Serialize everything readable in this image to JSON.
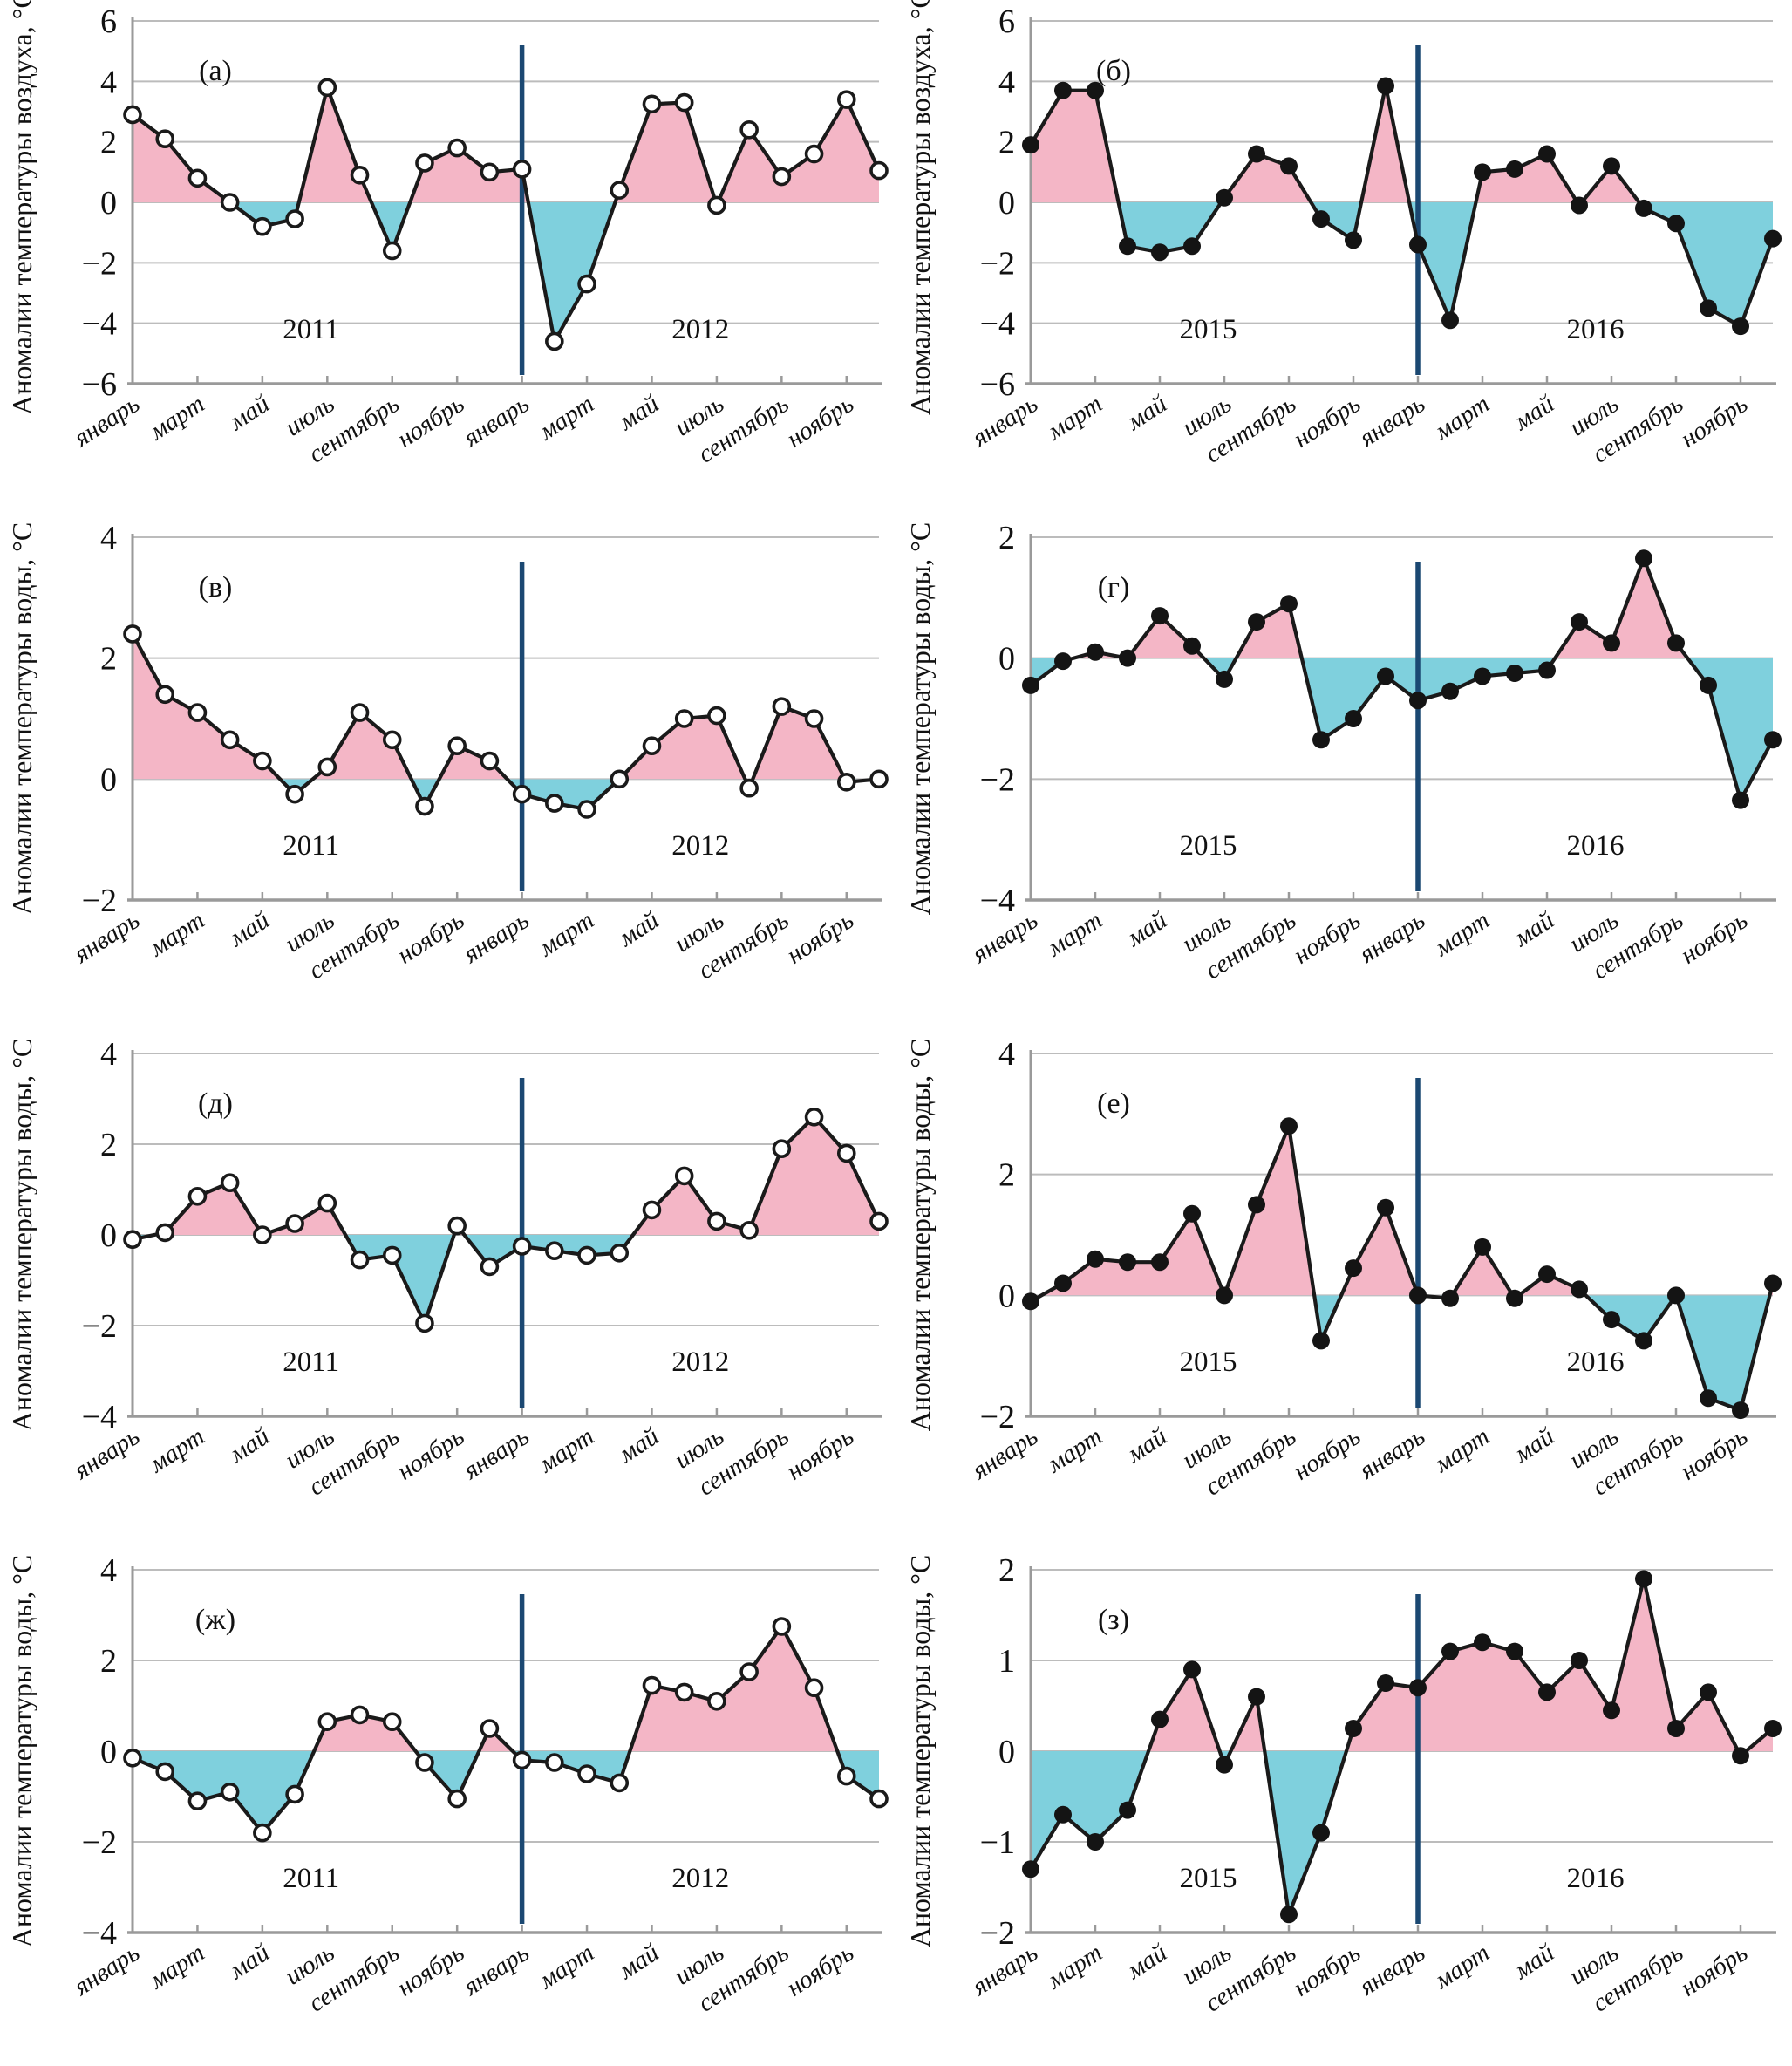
{
  "figure": {
    "description": "Eight-panel figure of monthly air and water temperature anomalies",
    "background": "#ffffff"
  },
  "colors": {
    "positive_fill": "#f4b6c6",
    "negative_fill": "#7fd0dd",
    "line": "#1a1a1a",
    "marker_open_fill": "#ffffff",
    "marker_filled": "#141414",
    "year_divider": "#1b4872",
    "gridline": "#bcbcbc",
    "axis": "#9a9a9a"
  },
  "x_tick_labels": [
    "январь",
    "март",
    "май",
    "июль",
    "сентябрь",
    "ноябрь"
  ],
  "ylabel_air": "Аномалии температуры воздуха, °С",
  "ylabel_water": "Аномалии температуры воды, °С",
  "chart_data": [
    {
      "id": "a",
      "type": "area",
      "letter": "(а)",
      "ylabel": "Аномалии температуры воздуха, °С",
      "ylim": [
        -6,
        6
      ],
      "ystep": 2,
      "marker": "open",
      "legend_position": "none",
      "grid": "horizontal",
      "x_tick_labels": [
        "январь",
        "март",
        "май",
        "июль",
        "сентябрь",
        "ноябрь",
        "январь",
        "март",
        "май",
        "июль",
        "сентябрь",
        "ноябрь"
      ],
      "series": [
        {
          "name": "2011",
          "values": [
            2.9,
            2.1,
            0.8,
            0.0,
            -0.8,
            -0.55,
            3.8,
            0.9,
            -1.6,
            1.3,
            1.8,
            1.0
          ]
        },
        {
          "name": "2012",
          "values": [
            1.1,
            -4.6,
            -2.7,
            0.4,
            3.25,
            3.3,
            -0.1,
            2.4,
            0.85,
            1.6,
            3.4,
            1.05
          ]
        }
      ]
    },
    {
      "id": "b",
      "type": "area",
      "letter": "(б)",
      "ylabel": "Аномалии температуры воздуха, °С",
      "ylim": [
        -6,
        6
      ],
      "ystep": 2,
      "marker": "filled",
      "legend_position": "none",
      "grid": "horizontal",
      "x_tick_labels": [
        "январь",
        "март",
        "май",
        "июль",
        "сентябрь",
        "ноябрь",
        "январь",
        "март",
        "май",
        "июль",
        "сентябрь",
        "ноябрь"
      ],
      "series": [
        {
          "name": "2015",
          "values": [
            1.9,
            3.7,
            3.7,
            -1.45,
            -1.65,
            -1.45,
            0.15,
            1.6,
            1.2,
            -0.55,
            -1.25,
            3.85
          ]
        },
        {
          "name": "2016",
          "values": [
            -1.4,
            -3.9,
            1.0,
            1.1,
            1.6,
            -0.1,
            1.2,
            -0.2,
            -0.7,
            -3.5,
            -4.1,
            -1.2
          ]
        }
      ]
    },
    {
      "id": "v",
      "type": "area",
      "letter": "(в)",
      "ylabel": "Аномалии температуры воды, °С",
      "ylim": [
        -2,
        4
      ],
      "ystep": 2,
      "marker": "open",
      "legend_position": "none",
      "grid": "horizontal",
      "x_tick_labels": [
        "январь",
        "март",
        "май",
        "июль",
        "сентябрь",
        "ноябрь",
        "январь",
        "март",
        "май",
        "июль",
        "сентябрь",
        "ноябрь"
      ],
      "series": [
        {
          "name": "2011",
          "values": [
            2.4,
            1.4,
            1.1,
            0.65,
            0.3,
            -0.25,
            0.2,
            1.1,
            0.65,
            -0.45,
            0.55,
            0.3
          ]
        },
        {
          "name": "2012",
          "values": [
            -0.25,
            -0.4,
            -0.5,
            0.0,
            0.55,
            1.0,
            1.05,
            -0.15,
            1.2,
            1.0,
            -0.05,
            0.0
          ]
        }
      ]
    },
    {
      "id": "g",
      "type": "area",
      "letter": "(г)",
      "ylabel": "Аномалии температуры воды, °С",
      "ylim": [
        -4,
        2
      ],
      "ystep": 2,
      "marker": "filled",
      "legend_position": "none",
      "grid": "horizontal",
      "x_tick_labels": [
        "январь",
        "март",
        "май",
        "июль",
        "сентябрь",
        "ноябрь",
        "январь",
        "март",
        "май",
        "июль",
        "сентябрь",
        "ноябрь"
      ],
      "series": [
        {
          "name": "2015",
          "values": [
            -0.45,
            -0.05,
            0.1,
            0.0,
            0.7,
            0.2,
            -0.35,
            0.6,
            0.9,
            -1.35,
            -1.0,
            -0.3
          ]
        },
        {
          "name": "2016",
          "values": [
            -0.7,
            -0.55,
            -0.3,
            -0.25,
            -0.2,
            0.6,
            0.25,
            1.65,
            0.25,
            -0.45,
            -2.35,
            -1.35
          ]
        }
      ]
    },
    {
      "id": "d",
      "type": "area",
      "letter": "(д)",
      "ylabel": "Аномалии температуры воды, °С",
      "ylim": [
        -4,
        4
      ],
      "ystep": 2,
      "marker": "open",
      "legend_position": "none",
      "grid": "horizontal",
      "x_tick_labels": [
        "январь",
        "март",
        "май",
        "июль",
        "сентябрь",
        "ноябрь",
        "январь",
        "март",
        "май",
        "июль",
        "сентябрь",
        "ноябрь"
      ],
      "series": [
        {
          "name": "2011",
          "values": [
            -0.1,
            0.05,
            0.85,
            1.15,
            0.0,
            0.25,
            0.7,
            -0.55,
            -0.45,
            -1.95,
            0.2,
            -0.7
          ]
        },
        {
          "name": "2012",
          "values": [
            -0.25,
            -0.35,
            -0.45,
            -0.4,
            0.55,
            1.3,
            0.3,
            0.1,
            1.9,
            2.6,
            1.8,
            0.3
          ]
        }
      ]
    },
    {
      "id": "e",
      "type": "area",
      "letter": "(е)",
      "ylabel": "Аномалии температуры воды, °С",
      "ylim": [
        -2,
        4
      ],
      "ystep": 2,
      "marker": "filled",
      "legend_position": "none",
      "grid": "horizontal",
      "x_tick_labels": [
        "январь",
        "март",
        "май",
        "июль",
        "сентябрь",
        "ноябрь",
        "январь",
        "март",
        "май",
        "июль",
        "сентябрь",
        "ноябрь"
      ],
      "series": [
        {
          "name": "2015",
          "values": [
            -0.1,
            0.2,
            0.6,
            0.55,
            0.55,
            1.35,
            0.0,
            1.5,
            2.8,
            -0.75,
            0.45,
            1.45
          ]
        },
        {
          "name": "2016",
          "values": [
            0.0,
            -0.05,
            0.8,
            -0.05,
            0.35,
            0.1,
            -0.4,
            -0.75,
            0.0,
            -1.7,
            -1.9,
            0.2
          ]
        }
      ]
    },
    {
      "id": "zh",
      "type": "area",
      "letter": "(ж)",
      "ylabel": "Аномалии температуры воды, °С",
      "ylim": [
        -4,
        4
      ],
      "ystep": 2,
      "marker": "open",
      "legend_position": "none",
      "grid": "horizontal",
      "x_tick_labels": [
        "январь",
        "март",
        "май",
        "июль",
        "сентябрь",
        "ноябрь",
        "январь",
        "март",
        "май",
        "июль",
        "сентябрь",
        "ноябрь"
      ],
      "series": [
        {
          "name": "2011",
          "values": [
            -0.15,
            -0.45,
            -1.1,
            -0.9,
            -1.8,
            -0.95,
            0.65,
            0.8,
            0.65,
            -0.25,
            -1.05,
            0.5
          ]
        },
        {
          "name": "2012",
          "values": [
            -0.2,
            -0.25,
            -0.5,
            -0.7,
            1.45,
            1.3,
            1.1,
            1.75,
            2.75,
            1.4,
            -0.55,
            -1.05
          ]
        }
      ]
    },
    {
      "id": "z",
      "type": "area",
      "letter": "(з)",
      "ylabel": "Аномалии температуры воды, °С",
      "ylim": [
        -2,
        2
      ],
      "ystep": 1,
      "marker": "filled",
      "legend_position": "none",
      "grid": "horizontal",
      "x_tick_labels": [
        "январь",
        "март",
        "май",
        "июль",
        "сентябрь",
        "ноябрь",
        "январь",
        "март",
        "май",
        "июль",
        "сентябрь",
        "ноябрь"
      ],
      "series": [
        {
          "name": "2015",
          "values": [
            -1.3,
            -0.7,
            -1.0,
            -0.65,
            0.35,
            0.9,
            -0.15,
            0.6,
            -1.8,
            -0.9,
            0.25,
            0.75
          ]
        },
        {
          "name": "2016",
          "values": [
            0.7,
            1.1,
            1.2,
            1.1,
            0.65,
            1.0,
            0.45,
            1.9,
            0.25,
            0.65,
            -0.05,
            0.25
          ]
        }
      ]
    }
  ]
}
